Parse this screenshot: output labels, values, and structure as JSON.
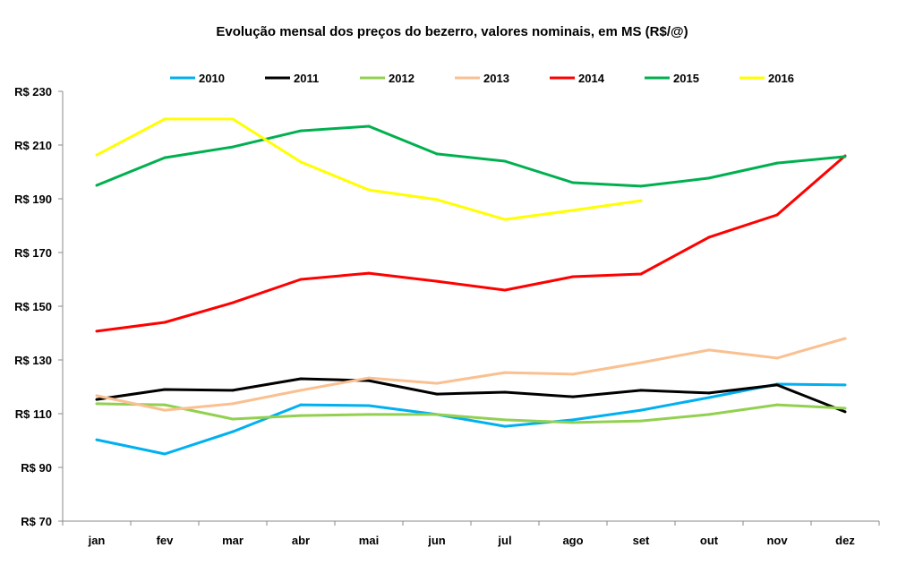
{
  "chart_data": {
    "type": "line",
    "title": "Evolução mensal dos preços do bezerro, valores nominais, em MS (R$/@)",
    "xlabel": "",
    "ylabel": "",
    "categories": [
      "jan",
      "fev",
      "mar",
      "abr",
      "mai",
      "jun",
      "jul",
      "ago",
      "set",
      "out",
      "nov",
      "dez"
    ],
    "ylim": [
      70,
      230
    ],
    "yticks": [
      70,
      90,
      110,
      130,
      150,
      170,
      190,
      210,
      230
    ],
    "ytick_labels": [
      "R$ 70",
      "R$ 90",
      "R$ 110",
      "R$ 130",
      "R$ 150",
      "R$ 170",
      "R$ 190",
      "R$ 210",
      "R$ 230"
    ],
    "legend_position": "top",
    "grid": false,
    "series": [
      {
        "name": "2010",
        "color": "#00B0F0",
        "values": [
          100.3,
          95,
          103.3,
          113.3,
          113,
          109.7,
          105.3,
          107.7,
          111.3,
          116,
          121,
          120.7
        ]
      },
      {
        "name": "2011",
        "color": "#000000",
        "values": [
          115.3,
          119,
          118.7,
          123,
          122.3,
          117.3,
          118,
          116.3,
          118.7,
          117.7,
          120.7,
          110.7
        ]
      },
      {
        "name": "2012",
        "color": "#92D050",
        "values": [
          113.7,
          113.3,
          108,
          109.3,
          109.7,
          109.7,
          107.7,
          106.7,
          107.3,
          109.7,
          113.3,
          112
        ]
      },
      {
        "name": "2013",
        "color": "#FAC090",
        "values": [
          116.7,
          111.3,
          113.7,
          118.7,
          123.3,
          121.3,
          125.3,
          124.7,
          129,
          133.7,
          130.7,
          138
        ]
      },
      {
        "name": "2014",
        "color": "#FF0000",
        "values": [
          140.7,
          144,
          151.3,
          160,
          162.3,
          159.3,
          156,
          161,
          162,
          175.7,
          184,
          206
        ]
      },
      {
        "name": "2015",
        "color": "#00B050",
        "values": [
          195,
          205.3,
          209.3,
          215.3,
          217,
          206.7,
          204,
          196,
          194.7,
          197.7,
          203.3,
          205.7
        ]
      },
      {
        "name": "2016",
        "color": "#FFFF00",
        "values": [
          206.3,
          219.7,
          219.7,
          203.7,
          193.3,
          189.7,
          182.3,
          185.7,
          189.3,
          null,
          null,
          null
        ]
      }
    ]
  }
}
